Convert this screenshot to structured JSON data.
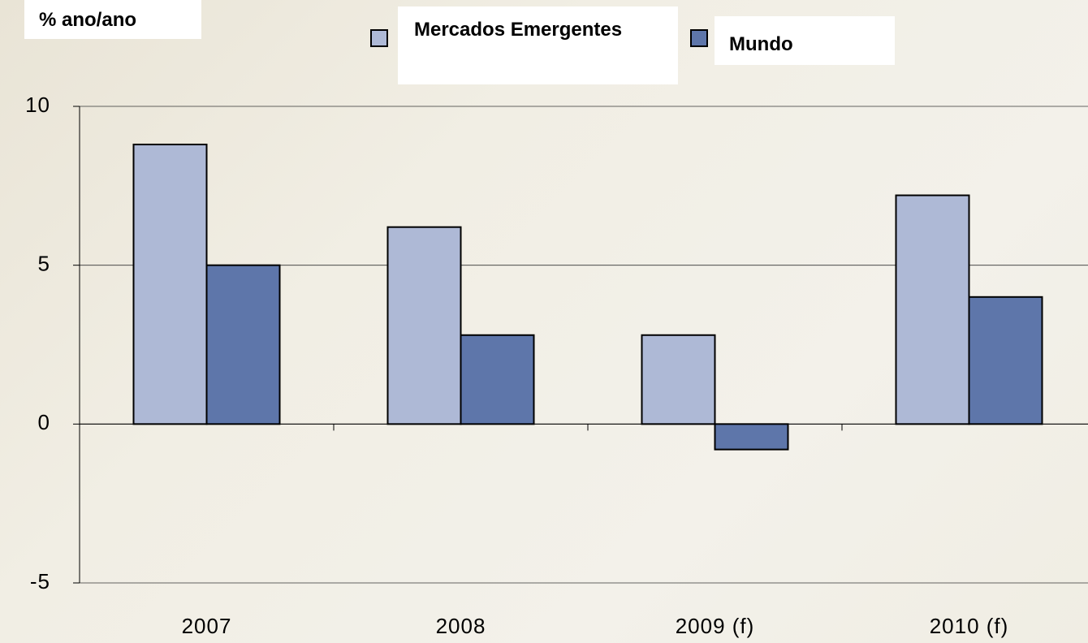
{
  "chart_data": {
    "type": "bar",
    "y_label": "% ano/ano",
    "categories": [
      "2007",
      "2008",
      "2009 (f)",
      "2010 (f)"
    ],
    "series": [
      {
        "name": "Mercados Emergentes",
        "color": "#aeb9d6",
        "values": [
          8.8,
          6.2,
          2.8,
          7.2
        ]
      },
      {
        "name": "Mundo",
        "color": "#5e76aa",
        "values": [
          5.0,
          2.8,
          -0.8,
          4.0
        ]
      }
    ],
    "ylim": [
      -5,
      10
    ],
    "yticks": [
      -5,
      0,
      5,
      10
    ],
    "grid": true
  }
}
